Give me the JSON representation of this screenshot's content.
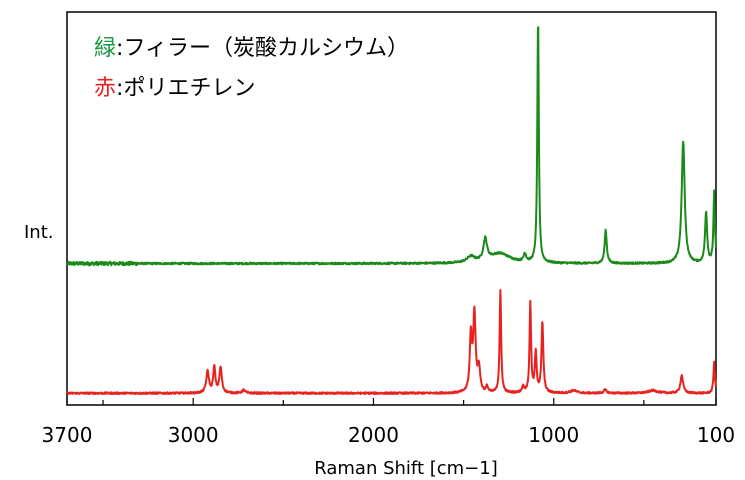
{
  "chart_data": {
    "type": "line",
    "xlabel": "Raman Shift [cm−1]",
    "ylabel": "Int.",
    "x_reversed": true,
    "xlim": [
      3700,
      100
    ],
    "x_tick_labels": [
      {
        "value": 3700,
        "text": "3700"
      },
      {
        "value": 3000,
        "text": "3000"
      },
      {
        "value": 2000,
        "text": "2000"
      },
      {
        "value": 1000,
        "text": "1000"
      },
      {
        "value": 100,
        "text": "100"
      }
    ],
    "x_minor_ticks": [
      3500,
      2500,
      1500,
      500
    ],
    "ylim": [
      0,
      100
    ],
    "grid": false,
    "legend_position": "top-left",
    "legend": [
      {
        "key": "緑",
        "sep": ":",
        "text": "フィラー（炭酸カルシウム）",
        "color": "#1a9641"
      },
      {
        "key": "赤",
        "sep": ":",
        "text": "ポリエチレン",
        "color": "#e8231f"
      }
    ],
    "series": [
      {
        "color": "#1a8a1a",
        "baseline": 36,
        "peaks": [
          {
            "x": 1460,
            "h": 1.5,
            "w": 25
          },
          {
            "x": 1380,
            "h": 5.5,
            "w": 12
          },
          {
            "x": 1300,
            "h": 2.5,
            "w": 70
          },
          {
            "x": 1160,
            "h": 2.0,
            "w": 8
          },
          {
            "x": 1087,
            "h": 62,
            "w": 5
          },
          {
            "x": 712,
            "h": 8.5,
            "w": 7
          },
          {
            "x": 282,
            "h": 31,
            "w": 10
          },
          {
            "x": 155,
            "h": 13,
            "w": 7
          },
          {
            "x": 110,
            "h": 18,
            "w": 5
          }
        ]
      },
      {
        "color": "#e8231f",
        "baseline": 3,
        "peaks": [
          {
            "x": 2920,
            "h": 5.5,
            "w": 9
          },
          {
            "x": 2883,
            "h": 6.5,
            "w": 7
          },
          {
            "x": 2848,
            "h": 6.5,
            "w": 8
          },
          {
            "x": 2720,
            "h": 0.8,
            "w": 10
          },
          {
            "x": 1460,
            "h": 14,
            "w": 7
          },
          {
            "x": 1440,
            "h": 20,
            "w": 8
          },
          {
            "x": 1415,
            "h": 6,
            "w": 8
          },
          {
            "x": 1370,
            "h": 1.5,
            "w": 6
          },
          {
            "x": 1296,
            "h": 26,
            "w": 5
          },
          {
            "x": 1170,
            "h": 1.5,
            "w": 8
          },
          {
            "x": 1130,
            "h": 23,
            "w": 5
          },
          {
            "x": 1100,
            "h": 10,
            "w": 6
          },
          {
            "x": 1063,
            "h": 18,
            "w": 6
          },
          {
            "x": 890,
            "h": 0.7,
            "w": 20
          },
          {
            "x": 715,
            "h": 0.8,
            "w": 10
          },
          {
            "x": 450,
            "h": 0.7,
            "w": 30
          },
          {
            "x": 290,
            "h": 4.5,
            "w": 9
          },
          {
            "x": 110,
            "h": 8,
            "w": 5
          }
        ]
      }
    ]
  }
}
